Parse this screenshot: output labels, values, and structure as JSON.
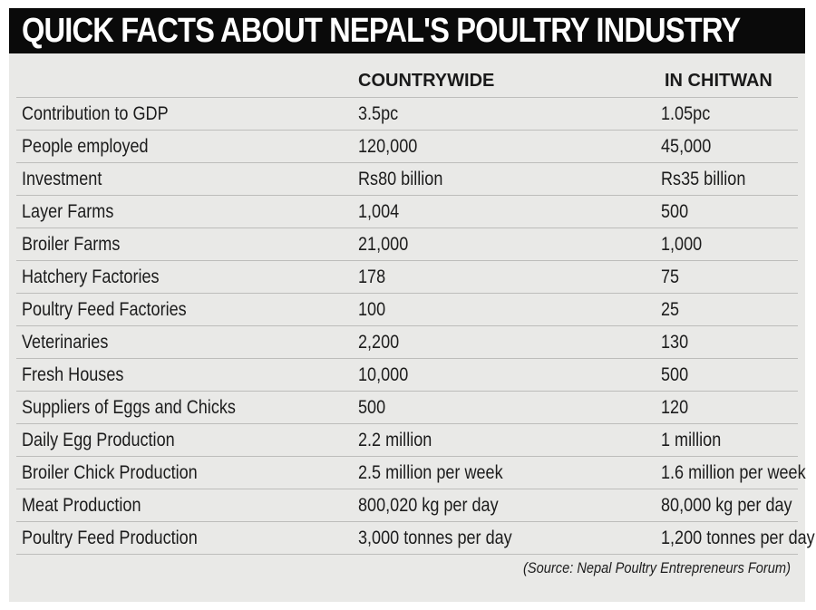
{
  "title": "QUICK FACTS ABOUT NEPAL'S POULTRY INDUSTRY",
  "columns": [
    "",
    "COUNTRYWIDE",
    "IN CHITWAN"
  ],
  "rows": [
    {
      "label": "Contribution to GDP",
      "countrywide": "3.5pc",
      "chitwan": "1.05pc"
    },
    {
      "label": "People employed",
      "countrywide": "120,000",
      "chitwan": "45,000"
    },
    {
      "label": "Investment",
      "countrywide": "Rs80 billion",
      "chitwan": "Rs35 billion"
    },
    {
      "label": "Layer Farms",
      "countrywide": "1,004",
      "chitwan": "500"
    },
    {
      "label": "Broiler Farms",
      "countrywide": "21,000",
      "chitwan": "1,000"
    },
    {
      "label": "Hatchery Factories",
      "countrywide": "178",
      "chitwan": "75"
    },
    {
      "label": "Poultry Feed Factories",
      "countrywide": "100",
      "chitwan": "25"
    },
    {
      "label": "Veterinaries",
      "countrywide": "2,200",
      "chitwan": "130"
    },
    {
      "label": "Fresh Houses",
      "countrywide": "10,000",
      "chitwan": "500"
    },
    {
      "label": "Suppliers of Eggs and Chicks",
      "countrywide": "500",
      "chitwan": "120"
    },
    {
      "label": "Daily Egg Production",
      "countrywide": "2.2 million",
      "chitwan": "1 million"
    },
    {
      "label": "Broiler Chick Production",
      "countrywide": "2.5 million per week",
      "chitwan": "1.6 million per week"
    },
    {
      "label": "Meat Production",
      "countrywide": "800,020 kg per day",
      "chitwan": "80,000 kg per day"
    },
    {
      "label": "Poultry Feed Production",
      "countrywide": "3,000 tonnes per day",
      "chitwan": "1,200 tonnes per day"
    }
  ],
  "source": "(Source: Nepal Poultry Entrepreneurs Forum)"
}
